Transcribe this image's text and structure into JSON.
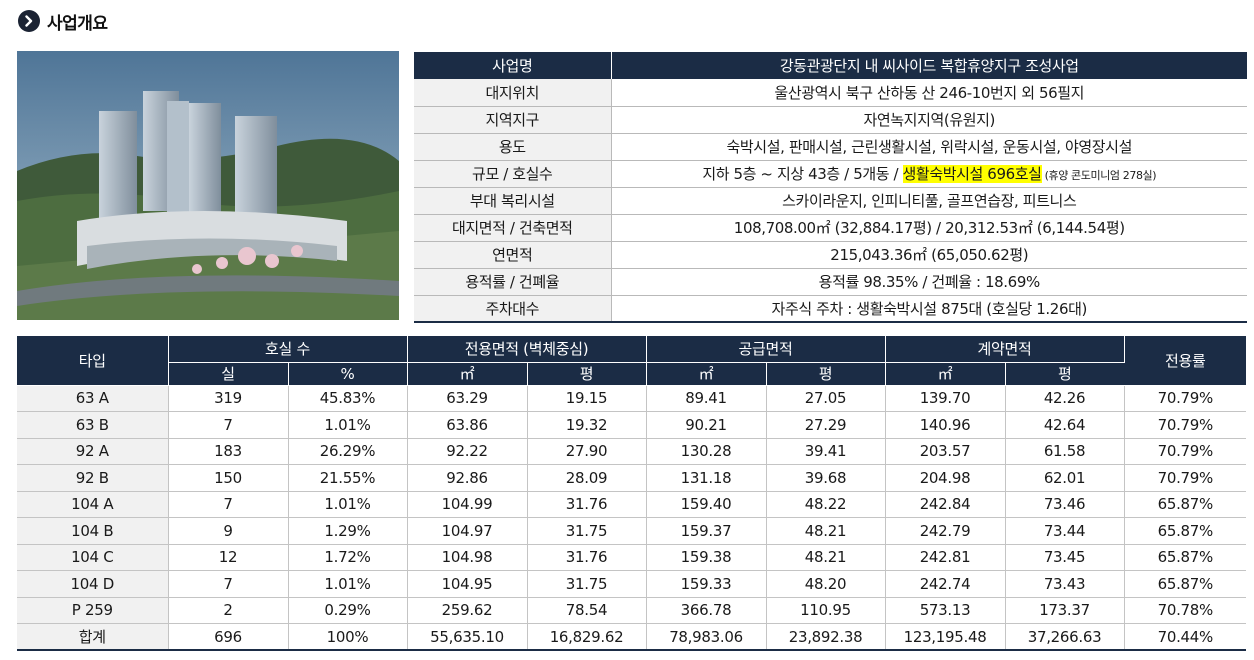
{
  "header": {
    "title": "사업개요",
    "icon": "chevron-right-icon"
  },
  "info_rows": [
    {
      "label": "사업명",
      "value": "강동관광단지 내 씨사이드 복합휴양지구 조성사업"
    },
    {
      "label": "대지위치",
      "value": "울산광역시 북구 산하동 산 246-10번지 외 56필지"
    },
    {
      "label": "지역지구",
      "value": "자연녹지지역(유원지)"
    },
    {
      "label": "용도",
      "value": "숙박시설, 판매시설, 근린생활시설, 위락시설, 운동시설, 야영장시설"
    },
    {
      "label": "규모 / 호실수",
      "value": "지하 5층 ~ 지상 43층  / 5개동 / ",
      "highlight": "생활숙박시설 696호실",
      "note": " (휴양 콘도미니엄 278실)"
    },
    {
      "label": "부대 복리시설",
      "value": "스카이라운지, 인피니티풀, 골프연습장, 피트니스"
    },
    {
      "label": "대지면적 / 건축면적",
      "value": "108,708.00㎡ (32,884.17평) / 20,312.53㎡ (6,144.54평)"
    },
    {
      "label": "연면적",
      "value": "215,043.36㎡ (65,050.62평)"
    },
    {
      "label": "용적률 / 건폐율",
      "value": "용적률 98.35% / 건폐율 : 18.69%"
    },
    {
      "label": "주차대수",
      "value": "자주식 주차 : 생활숙박시설 875대 (호실당 1.26대)"
    }
  ],
  "unit_table": {
    "headers": {
      "type": "타입",
      "rooms": "호실 수",
      "exclusive": "전용면적 (벽체중심)",
      "supply": "공급면적",
      "contract": "계약면적",
      "ratio": "전용률",
      "sub": [
        "실",
        "%",
        "㎡",
        "평",
        "㎡",
        "평",
        "㎡",
        "평"
      ]
    },
    "rows": [
      [
        "63 A",
        "319",
        "45.83%",
        "63.29",
        "19.15",
        "89.41",
        "27.05",
        "139.70",
        "42.26",
        "70.79%"
      ],
      [
        "63 B",
        "7",
        "1.01%",
        "63.86",
        "19.32",
        "90.21",
        "27.29",
        "140.96",
        "42.64",
        "70.79%"
      ],
      [
        "92 A",
        "183",
        "26.29%",
        "92.22",
        "27.90",
        "130.28",
        "39.41",
        "203.57",
        "61.58",
        "70.79%"
      ],
      [
        "92 B",
        "150",
        "21.55%",
        "92.86",
        "28.09",
        "131.18",
        "39.68",
        "204.98",
        "62.01",
        "70.79%"
      ],
      [
        "104 A",
        "7",
        "1.01%",
        "104.99",
        "31.76",
        "159.40",
        "48.22",
        "242.84",
        "73.46",
        "65.87%"
      ],
      [
        "104 B",
        "9",
        "1.29%",
        "104.97",
        "31.75",
        "159.37",
        "48.21",
        "242.79",
        "73.44",
        "65.87%"
      ],
      [
        "104 C",
        "12",
        "1.72%",
        "104.98",
        "31.76",
        "159.38",
        "48.21",
        "242.81",
        "73.45",
        "65.87%"
      ],
      [
        "104 D",
        "7",
        "1.01%",
        "104.95",
        "31.75",
        "159.33",
        "48.20",
        "242.74",
        "73.43",
        "65.87%"
      ],
      [
        "P 259",
        "2",
        "0.29%",
        "259.62",
        "78.54",
        "366.78",
        "110.95",
        "573.13",
        "173.37",
        "70.78%"
      ],
      [
        "합계",
        "696",
        "100%",
        "55,635.10",
        "16,829.62",
        "78,983.06",
        "23,892.38",
        "123,195.48",
        "37,266.63",
        "70.44%"
      ]
    ]
  },
  "colors": {
    "navy": "#1b2c45",
    "label_bg": "#f1f1f1",
    "highlight": "#ffff00"
  }
}
